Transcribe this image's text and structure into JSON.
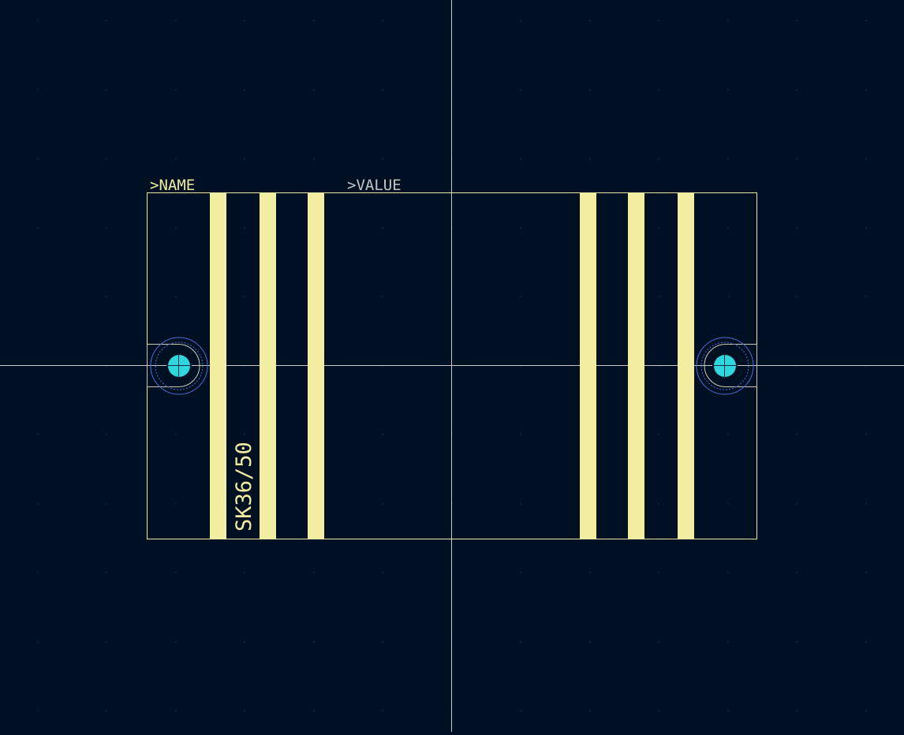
{
  "colors": {
    "background": "#001023",
    "grid_dot": "#3a4a5c",
    "crosshair": "#c8c8c8",
    "outline": "#e8e8a8",
    "silkscreen_bar": "#f2eda0",
    "name_text": "#f2eda0",
    "value_text": "#c4c4c4",
    "pad": "#2fd6dd",
    "pad_ring": "#4a6cd8",
    "pad_outline": "#c8c8b8"
  },
  "labels": {
    "name": ">NAME",
    "value": ">VALUE",
    "part": "SK36/50"
  },
  "pads": [
    {
      "id": "pad-left"
    },
    {
      "id": "pad-right"
    }
  ],
  "icons": {
    "pad": "through-hole-pad-icon",
    "origin": "crosshair-icon"
  }
}
